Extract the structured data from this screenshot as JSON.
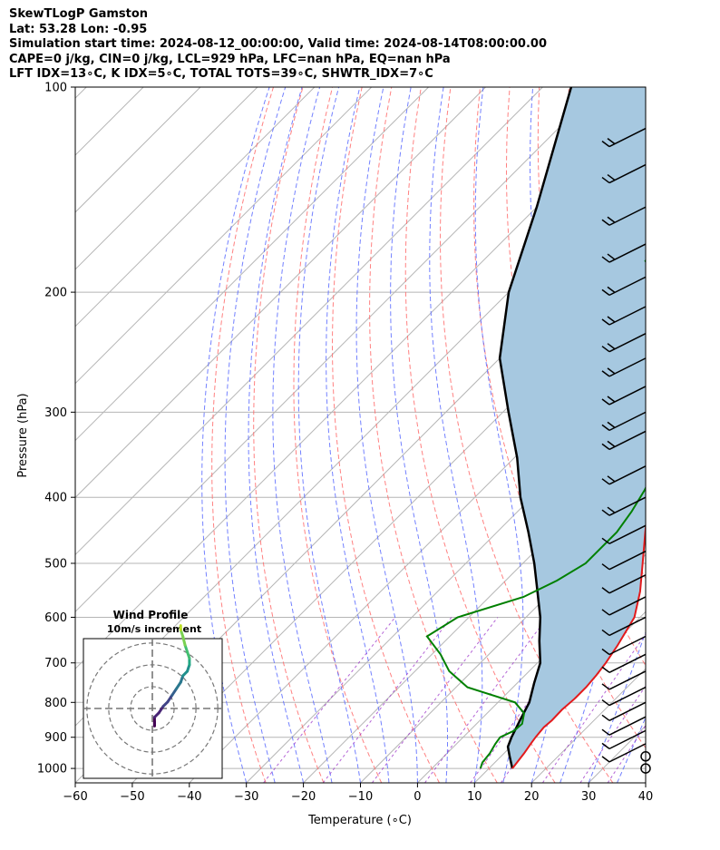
{
  "header": {
    "line1": "SkewTLogP Gamston",
    "line2": "Lat: 53.28   Lon: -0.95",
    "line3": "Simulation start time: 2024-08-12_00:00:00, Valid time: 2024-08-14T08:00:00.00",
    "line4": "CAPE=0 j/kg, CIN=0 j/kg, LCL=929 hPa, LFC=nan hPa, EQ=nan hPa",
    "line5": "LFT IDX=13∘C, K IDX=5∘C, TOTAL TOTS=39∘C, SHWTR_IDX=7∘C"
  },
  "colors": {
    "temperature": "#e31a1c",
    "dewpoint": "#008000",
    "parcel": "#000000",
    "cape_fill": "#a6c8e0",
    "dry_adiabats": "#ff6b6b",
    "moist_adiabats": "#5a6bff",
    "mixing_ratio": "#9b30c8",
    "isotherms": "#b5b5b5"
  },
  "chart_data": [
    {
      "type": "line",
      "subtype": "skew-T log-P diagram",
      "title": "",
      "xlabel": "Temperature (∘C)",
      "ylabel": "Pressure (hPa)",
      "xlim": [
        -60,
        40
      ],
      "ylim": [
        1050,
        100
      ],
      "yscale": "log",
      "x_ticks": [
        "−60",
        "−50",
        "−40",
        "−30",
        "−20",
        "−10",
        "0",
        "10",
        "20",
        "30",
        "40"
      ],
      "y_ticks": [
        "100",
        "200",
        "300",
        "400",
        "500",
        "600",
        "700",
        "800",
        "900",
        "1000"
      ],
      "grid": true,
      "series": [
        {
          "id": "temperature",
          "points": [
            [
              14.1,
              1000
            ],
            [
              13.5,
              950
            ],
            [
              13.0,
              920
            ],
            [
              12.7,
              900
            ],
            [
              12.4,
              870
            ],
            [
              12.6,
              850
            ],
            [
              12.5,
              820
            ],
            [
              12.8,
              790
            ],
            [
              12.8,
              760
            ],
            [
              12.5,
              730
            ],
            [
              12.0,
              700
            ],
            [
              11.0,
              660
            ],
            [
              9.0,
              600
            ],
            [
              5.5,
              550
            ],
            [
              1.0,
              500
            ],
            [
              -4.0,
              450
            ],
            [
              -9.5,
              400
            ],
            [
              -13.0,
              370
            ],
            [
              -15.5,
              340
            ],
            [
              -19.0,
              310
            ],
            [
              -23.5,
              280
            ],
            [
              -28.5,
              250
            ],
            [
              -32.0,
              232
            ],
            [
              -27.5,
              220
            ],
            [
              -25.5,
              205
            ],
            [
              -24.0,
              195
            ],
            [
              -20.5,
              182
            ],
            [
              -15.0,
              170
            ],
            [
              -11.0,
              162
            ],
            [
              -10.0,
              152
            ],
            [
              -10.0,
              140
            ],
            [
              -10.5,
              130
            ],
            [
              -12.0,
              120
            ],
            [
              -14.5,
              110
            ],
            [
              -17.0,
              100
            ]
          ]
        },
        {
          "id": "dewpoint",
          "points": [
            [
              8.5,
              1000
            ],
            [
              7.8,
              980
            ],
            [
              7.5,
              950
            ],
            [
              6.8,
              920
            ],
            [
              6.5,
              900
            ],
            [
              7.8,
              880
            ],
            [
              8.0,
              860
            ],
            [
              6.5,
              830
            ],
            [
              3.0,
              800
            ],
            [
              -8.0,
              760
            ],
            [
              -14.0,
              720
            ],
            [
              -18.5,
              680
            ],
            [
              -24.0,
              640
            ],
            [
              -22.0,
              600
            ],
            [
              -14.0,
              560
            ],
            [
              -11.0,
              530
            ],
            [
              -9.0,
              500
            ],
            [
              -9.0,
              450
            ],
            [
              -10.0,
              420
            ],
            [
              -11.5,
              390
            ],
            [
              -14.5,
              350
            ],
            [
              -19.5,
              310
            ],
            [
              -24.5,
              280
            ],
            [
              -30.0,
              250
            ],
            [
              -33.0,
              237
            ],
            [
              -34.0,
              220
            ],
            [
              -36.5,
              210
            ],
            [
              -42.0,
              200
            ],
            [
              -47.0,
              190
            ],
            [
              -51.5,
              180
            ],
            [
              -52.0,
              175
            ],
            [
              -49.0,
              160
            ],
            [
              -47.5,
              150
            ],
            [
              -45.5,
              135
            ],
            [
              -44.0,
              120
            ],
            [
              -44.0,
              110
            ],
            [
              -44.0,
              100
            ]
          ]
        },
        {
          "id": "parcel",
          "points": [
            [
              14.1,
              1000
            ],
            [
              11.5,
              960
            ],
            [
              9.5,
              929
            ],
            [
              8.5,
              900
            ],
            [
              7.0,
              850
            ],
            [
              5.5,
              800
            ],
            [
              3.0,
              750
            ],
            [
              0.5,
              700
            ],
            [
              -3.5,
              650
            ],
            [
              -7.5,
              600
            ],
            [
              -12.5,
              550
            ],
            [
              -18.0,
              500
            ],
            [
              -24.5,
              450
            ],
            [
              -32.0,
              400
            ],
            [
              -39.5,
              350
            ],
            [
              -49.0,
              300
            ],
            [
              -60.0,
              250
            ],
            [
              -70.0,
              200
            ],
            [
              -80.0,
              150
            ],
            [
              -95.0,
              100
            ]
          ]
        }
      ],
      "wind_barbs": {
        "levels_hpa": [
          1000,
          960,
          920,
          880,
          840,
          800,
          760,
          720,
          680,
          640,
          600,
          560,
          520,
          480,
          440,
          400,
          360,
          320,
          300,
          275,
          250,
          230,
          210,
          190,
          170,
          150,
          130,
          115
        ]
      }
    },
    {
      "type": "line",
      "subtype": "hodograph",
      "title": "Wind Profile",
      "subtitle": "10m/s increment",
      "xlim": [
        -40,
        40
      ],
      "ylim": [
        -40,
        40
      ],
      "rings_ms": [
        10,
        20,
        30
      ],
      "points": [
        [
          1,
          -6
        ],
        [
          1,
          -8
        ],
        [
          1,
          -4
        ],
        [
          3,
          -2
        ],
        [
          5,
          1
        ],
        [
          7,
          3
        ],
        [
          9,
          6
        ],
        [
          11,
          9
        ],
        [
          13,
          12
        ],
        [
          14,
          15
        ],
        [
          16,
          17
        ],
        [
          17,
          20
        ],
        [
          17,
          23
        ],
        [
          16,
          26
        ],
        [
          15,
          29
        ],
        [
          14,
          33
        ],
        [
          13,
          36
        ],
        [
          13,
          38
        ]
      ]
    }
  ]
}
